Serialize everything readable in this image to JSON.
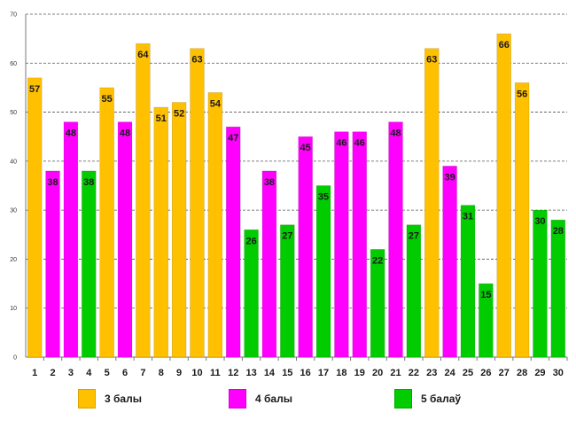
{
  "chart_data": {
    "type": "bar",
    "title": "",
    "xlabel": "",
    "ylabel": "",
    "ylim": [
      0,
      70
    ],
    "yticks": [
      "0",
      "10",
      "20",
      "30",
      "40",
      "50",
      "60",
      "70"
    ],
    "grid": true,
    "categories": [
      "1",
      "2",
      "3",
      "4",
      "5",
      "6",
      "7",
      "8",
      "9",
      "10",
      "11",
      "12",
      "13",
      "14",
      "15",
      "16",
      "17",
      "18",
      "19",
      "20",
      "21",
      "22",
      "23",
      "24",
      "25",
      "26",
      "27",
      "28",
      "29",
      "30"
    ],
    "values": [
      57,
      38,
      48,
      38,
      55,
      48,
      64,
      51,
      52,
      63,
      54,
      47,
      26,
      38,
      27,
      45,
      35,
      46,
      46,
      22,
      48,
      27,
      63,
      39,
      31,
      15,
      66,
      56,
      30,
      28
    ],
    "grades": [
      "3",
      "4",
      "4",
      "5",
      "3",
      "4",
      "3",
      "3",
      "3",
      "3",
      "3",
      "4",
      "5",
      "4",
      "5",
      "4",
      "5",
      "4",
      "4",
      "5",
      "4",
      "5",
      "3",
      "4",
      "5",
      "5",
      "3",
      "3",
      "5",
      "5"
    ],
    "legend": [
      {
        "key": "3",
        "label": "3 балы",
        "color": "#FFC000"
      },
      {
        "key": "4",
        "label": "4 балы",
        "color": "#FF00FF"
      },
      {
        "key": "5",
        "label": "5 балаў",
        "color": "#00CC00"
      }
    ],
    "legend_position": "bottom"
  }
}
